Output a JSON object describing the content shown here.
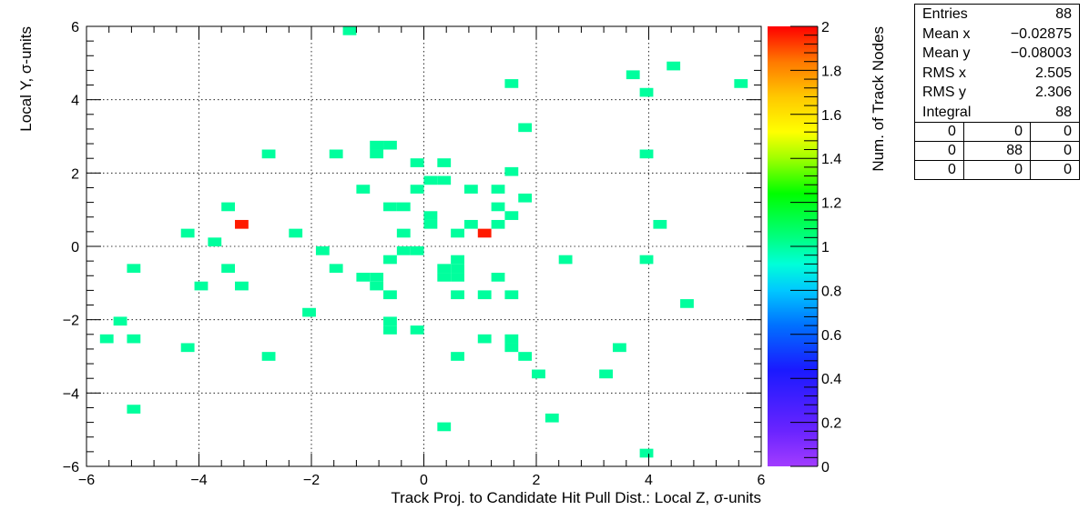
{
  "chart_data": {
    "type": "heatmap",
    "xlabel": "Track Proj. to Candidate Hit Pull Dist.: Local Z, σ-units",
    "ylabel": "Local Y, σ-units",
    "zlabel": "Num. of Track Nodes",
    "xlim": [
      -6,
      6
    ],
    "ylim": [
      -6,
      6
    ],
    "zlim": [
      0,
      2
    ],
    "grid": true,
    "x_ticks": [
      "−6",
      "−4",
      "−2",
      "0",
      "2",
      "4",
      "6"
    ],
    "y_ticks": [
      "−6",
      "−4",
      "−2",
      "0",
      "2",
      "4",
      "6"
    ],
    "z_ticks": [
      "0",
      "0.2",
      "0.4",
      "0.6",
      "0.8",
      "1",
      "1.2",
      "1.4",
      "1.6",
      "1.8",
      "2"
    ],
    "bin_width_x": 0.24,
    "bin_width_y": 0.24,
    "bins": [
      {
        "x": -1.32,
        "y": 5.88,
        "v": 1
      },
      {
        "x": 4.44,
        "y": 4.92,
        "v": 1
      },
      {
        "x": 3.72,
        "y": 4.68,
        "v": 1
      },
      {
        "x": 1.56,
        "y": 4.44,
        "v": 1
      },
      {
        "x": 5.64,
        "y": 4.44,
        "v": 1
      },
      {
        "x": 3.96,
        "y": 4.2,
        "v": 1
      },
      {
        "x": 1.8,
        "y": 3.24,
        "v": 1
      },
      {
        "x": -0.84,
        "y": 2.76,
        "v": 1
      },
      {
        "x": -0.6,
        "y": 2.76,
        "v": 1
      },
      {
        "x": -2.76,
        "y": 2.52,
        "v": 1
      },
      {
        "x": -1.56,
        "y": 2.52,
        "v": 1
      },
      {
        "x": -0.84,
        "y": 2.52,
        "v": 1
      },
      {
        "x": 3.96,
        "y": 2.52,
        "v": 1
      },
      {
        "x": -0.12,
        "y": 2.28,
        "v": 1
      },
      {
        "x": 0.36,
        "y": 2.28,
        "v": 1
      },
      {
        "x": 1.56,
        "y": 2.04,
        "v": 1
      },
      {
        "x": 0.12,
        "y": 1.8,
        "v": 1
      },
      {
        "x": 0.36,
        "y": 1.8,
        "v": 1
      },
      {
        "x": -1.08,
        "y": 1.56,
        "v": 1
      },
      {
        "x": -0.12,
        "y": 1.56,
        "v": 1
      },
      {
        "x": 0.84,
        "y": 1.56,
        "v": 1
      },
      {
        "x": 1.32,
        "y": 1.56,
        "v": 1
      },
      {
        "x": 1.8,
        "y": 1.32,
        "v": 1
      },
      {
        "x": -3.48,
        "y": 1.08,
        "v": 1
      },
      {
        "x": -0.6,
        "y": 1.08,
        "v": 1
      },
      {
        "x": -0.36,
        "y": 1.08,
        "v": 1
      },
      {
        "x": 1.32,
        "y": 1.08,
        "v": 1
      },
      {
        "x": 0.12,
        "y": 0.84,
        "v": 1
      },
      {
        "x": 1.56,
        "y": 0.84,
        "v": 1
      },
      {
        "x": -3.24,
        "y": 0.6,
        "v": 2
      },
      {
        "x": 0.12,
        "y": 0.6,
        "v": 1
      },
      {
        "x": 0.84,
        "y": 0.6,
        "v": 1
      },
      {
        "x": 1.32,
        "y": 0.6,
        "v": 1
      },
      {
        "x": 4.2,
        "y": 0.6,
        "v": 1
      },
      {
        "x": -4.2,
        "y": 0.36,
        "v": 1
      },
      {
        "x": -2.28,
        "y": 0.36,
        "v": 1
      },
      {
        "x": -0.36,
        "y": 0.36,
        "v": 1
      },
      {
        "x": 0.6,
        "y": 0.36,
        "v": 1
      },
      {
        "x": 1.08,
        "y": 0.36,
        "v": 2
      },
      {
        "x": -3.72,
        "y": 0.12,
        "v": 1
      },
      {
        "x": -1.8,
        "y": -0.12,
        "v": 1
      },
      {
        "x": -0.36,
        "y": -0.12,
        "v": 1
      },
      {
        "x": -0.12,
        "y": -0.12,
        "v": 1
      },
      {
        "x": -0.6,
        "y": -0.36,
        "v": 1
      },
      {
        "x": 0.6,
        "y": -0.36,
        "v": 1
      },
      {
        "x": 2.52,
        "y": -0.36,
        "v": 1
      },
      {
        "x": 3.96,
        "y": -0.36,
        "v": 1
      },
      {
        "x": -5.16,
        "y": -0.6,
        "v": 1
      },
      {
        "x": -3.48,
        "y": -0.6,
        "v": 1
      },
      {
        "x": -1.56,
        "y": -0.6,
        "v": 1
      },
      {
        "x": 0.36,
        "y": -0.6,
        "v": 1
      },
      {
        "x": 0.6,
        "y": -0.6,
        "v": 1
      },
      {
        "x": -1.08,
        "y": -0.84,
        "v": 1
      },
      {
        "x": -0.84,
        "y": -0.84,
        "v": 1
      },
      {
        "x": 0.36,
        "y": -0.84,
        "v": 1
      },
      {
        "x": 0.6,
        "y": -0.84,
        "v": 1
      },
      {
        "x": 1.32,
        "y": -0.84,
        "v": 1
      },
      {
        "x": -3.96,
        "y": -1.08,
        "v": 1
      },
      {
        "x": -3.24,
        "y": -1.08,
        "v": 1
      },
      {
        "x": -0.84,
        "y": -1.08,
        "v": 1
      },
      {
        "x": -0.6,
        "y": -1.32,
        "v": 1
      },
      {
        "x": 0.6,
        "y": -1.32,
        "v": 1
      },
      {
        "x": 1.08,
        "y": -1.32,
        "v": 1
      },
      {
        "x": 1.56,
        "y": -1.32,
        "v": 1
      },
      {
        "x": 4.68,
        "y": -1.56,
        "v": 1
      },
      {
        "x": -2.04,
        "y": -1.8,
        "v": 1
      },
      {
        "x": -5.4,
        "y": -2.04,
        "v": 1
      },
      {
        "x": -0.6,
        "y": -2.04,
        "v": 1
      },
      {
        "x": -0.6,
        "y": -2.28,
        "v": 1
      },
      {
        "x": -0.12,
        "y": -2.28,
        "v": 1
      },
      {
        "x": -5.64,
        "y": -2.52,
        "v": 1
      },
      {
        "x": -5.16,
        "y": -2.52,
        "v": 1
      },
      {
        "x": 1.08,
        "y": -2.52,
        "v": 1
      },
      {
        "x": 1.56,
        "y": -2.52,
        "v": 1
      },
      {
        "x": -4.2,
        "y": -2.76,
        "v": 1
      },
      {
        "x": 1.56,
        "y": -2.76,
        "v": 1
      },
      {
        "x": 3.48,
        "y": -2.76,
        "v": 1
      },
      {
        "x": -2.76,
        "y": -3.0,
        "v": 1
      },
      {
        "x": 0.6,
        "y": -3.0,
        "v": 1
      },
      {
        "x": 1.8,
        "y": -3.0,
        "v": 1
      },
      {
        "x": 2.04,
        "y": -3.48,
        "v": 1
      },
      {
        "x": 3.24,
        "y": -3.48,
        "v": 1
      },
      {
        "x": -5.16,
        "y": -4.44,
        "v": 1
      },
      {
        "x": 2.28,
        "y": -4.68,
        "v": 1
      },
      {
        "x": 0.36,
        "y": -4.92,
        "v": 1
      },
      {
        "x": 3.96,
        "y": -5.64,
        "v": 1
      }
    ]
  },
  "stats": {
    "rows": [
      {
        "label": "Entries",
        "value": "88"
      },
      {
        "label": "Mean x",
        "value": "−0.02875"
      },
      {
        "label": "Mean y",
        "value": "−0.08003"
      },
      {
        "label": "RMS x",
        "value": "2.505"
      },
      {
        "label": "RMS y",
        "value": "2.306"
      },
      {
        "label": "Integral",
        "value": "88"
      }
    ],
    "grid": [
      [
        "0",
        "0",
        "0"
      ],
      [
        "0",
        "88",
        "0"
      ],
      [
        "0",
        "0",
        "0"
      ]
    ]
  }
}
